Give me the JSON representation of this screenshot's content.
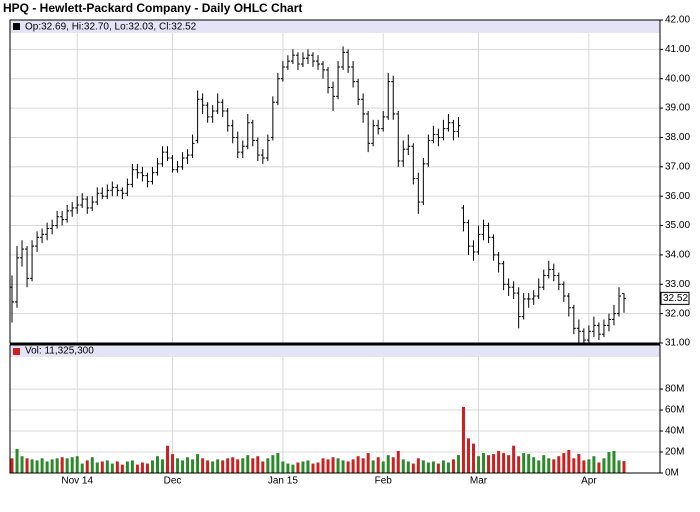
{
  "chart_data": [
    {
      "type": "ohlc",
      "title": "HPQ - Hewlett-Packard Company - Daily OHLC Chart",
      "legend": "Op:32.69, Hi:32.70, Lo:32.03, Cl:32.52",
      "color": "#000000",
      "grid": true,
      "categories": [
        null,
        null,
        null,
        null,
        null,
        null,
        null,
        null,
        null,
        null,
        null,
        null,
        null,
        "Nov 14",
        null,
        null,
        null,
        null,
        null,
        null,
        null,
        null,
        null,
        null,
        null,
        null,
        null,
        null,
        null,
        null,
        null,
        null,
        "Dec",
        null,
        null,
        null,
        null,
        null,
        null,
        null,
        null,
        null,
        null,
        null,
        null,
        null,
        null,
        null,
        null,
        null,
        null,
        null,
        null,
        null,
        "Jan 15",
        null,
        null,
        null,
        null,
        null,
        null,
        null,
        null,
        null,
        null,
        null,
        null,
        null,
        null,
        null,
        null,
        null,
        null,
        null,
        "Feb",
        null,
        null,
        null,
        null,
        null,
        null,
        null,
        null,
        null,
        null,
        null,
        null,
        null,
        null,
        null,
        null,
        null,
        null,
        "Mar",
        null,
        null,
        null,
        null,
        null,
        null,
        null,
        null,
        null,
        null,
        null,
        null,
        null,
        null,
        null,
        null,
        null,
        null,
        null,
        null,
        null,
        "Apr",
        null,
        null,
        null,
        null,
        null,
        null,
        null
      ],
      "open": [
        32.9,
        32.4,
        33.9,
        34.2,
        33.2,
        34.3,
        34.6,
        34.7,
        34.9,
        35.0,
        35.3,
        35.2,
        35.5,
        35.6,
        35.7,
        35.9,
        35.6,
        35.8,
        36.1,
        36.0,
        36.2,
        36.3,
        36.2,
        36.1,
        36.4,
        36.9,
        36.8,
        36.7,
        36.5,
        36.8,
        37.1,
        37.5,
        37.3,
        36.9,
        37.0,
        37.3,
        37.4,
        37.9,
        39.3,
        39.1,
        38.7,
        38.9,
        39.2,
        38.9,
        38.4,
        38.0,
        37.5,
        37.7,
        38.5,
        37.9,
        37.4,
        37.3,
        38.0,
        39.2,
        40.0,
        40.4,
        40.6,
        40.8,
        40.5,
        40.7,
        40.8,
        40.6,
        40.5,
        40.3,
        39.7,
        39.4,
        40.4,
        40.9,
        40.4,
        39.9,
        39.3,
        38.8,
        37.8,
        38.4,
        38.3,
        38.7,
        39.9,
        38.8,
        37.2,
        37.6,
        37.7,
        36.6,
        35.8,
        37.1,
        37.9,
        38.1,
        38.0,
        38.3,
        38.5,
        38.2,
        35.6,
        35.1,
        34.3,
        34.1,
        34.7,
        35.0,
        34.6,
        34.0,
        33.7,
        33.0,
        32.9,
        32.7,
        31.9,
        32.5,
        32.5,
        32.6,
        32.9,
        33.3,
        33.5,
        33.3,
        33.0,
        32.6,
        32.2,
        31.5,
        31.4,
        31.1,
        31.4,
        31.6,
        31.3,
        31.6,
        31.8,
        32.0,
        32.69
      ],
      "high": [
        33.3,
        34.3,
        34.5,
        34.3,
        34.5,
        34.8,
        34.9,
        35.1,
        35.2,
        35.5,
        35.5,
        35.7,
        35.8,
        36.0,
        36.1,
        36.0,
        36.0,
        36.3,
        36.3,
        36.4,
        36.5,
        36.4,
        36.3,
        36.6,
        37.1,
        37.1,
        37.0,
        36.8,
        37.0,
        37.3,
        37.7,
        37.7,
        37.4,
        37.2,
        37.5,
        37.6,
        38.1,
        39.6,
        39.5,
        39.2,
        39.1,
        39.5,
        39.3,
        39.0,
        38.6,
        38.2,
        37.9,
        38.8,
        38.6,
        38.0,
        37.6,
        38.1,
        39.4,
        40.2,
        40.6,
        40.8,
        41.0,
        40.9,
        40.9,
        41.0,
        40.9,
        40.8,
        40.6,
        40.4,
        39.9,
        40.6,
        41.1,
        41.0,
        40.6,
        40.0,
        39.5,
        38.9,
        38.6,
        38.6,
        38.9,
        40.2,
        40.1,
        38.9,
        37.9,
        38.1,
        37.8,
        36.8,
        37.3,
        38.1,
        38.4,
        38.3,
        38.6,
        38.8,
        38.6,
        38.7,
        35.7,
        35.2,
        34.5,
        35.0,
        35.2,
        35.1,
        34.7,
        34.1,
        33.8,
        33.2,
        33.1,
        32.9,
        32.7,
        32.7,
        32.8,
        33.2,
        33.5,
        33.8,
        33.7,
        33.4,
        33.1,
        32.7,
        32.3,
        31.8,
        31.5,
        31.6,
        31.9,
        31.7,
        31.8,
        32.0,
        32.3,
        32.9,
        32.7
      ],
      "low": [
        31.7,
        32.2,
        33.6,
        32.9,
        33.1,
        34.1,
        34.4,
        34.5,
        34.7,
        34.9,
        35.0,
        35.1,
        35.3,
        35.4,
        35.6,
        35.4,
        35.5,
        35.7,
        35.9,
        35.9,
        36.0,
        36.0,
        35.9,
        36.0,
        36.3,
        36.6,
        36.5,
        36.3,
        36.4,
        36.7,
        37.0,
        37.2,
        36.8,
        36.8,
        36.9,
        37.1,
        37.3,
        37.8,
        38.8,
        38.5,
        38.5,
        38.8,
        38.7,
        38.2,
        37.8,
        37.3,
        37.3,
        37.6,
        37.7,
        37.2,
        37.1,
        37.2,
        37.9,
        39.1,
        39.9,
        40.3,
        40.5,
        40.3,
        40.4,
        40.5,
        40.4,
        40.3,
        40.0,
        39.5,
        38.9,
        39.3,
        40.3,
        40.2,
        39.7,
        39.1,
        38.5,
        37.5,
        37.7,
        38.1,
        38.2,
        38.6,
        38.6,
        37.0,
        37.0,
        37.4,
        36.4,
        35.4,
        35.7,
        37.0,
        37.8,
        37.7,
        37.9,
        38.2,
        37.9,
        38.0,
        34.8,
        34.0,
        33.8,
        34.0,
        34.5,
        34.4,
        33.8,
        33.4,
        32.8,
        32.6,
        32.5,
        31.5,
        31.8,
        32.2,
        32.3,
        32.5,
        32.8,
        33.2,
        33.1,
        32.8,
        32.4,
        31.9,
        31.3,
        31.0,
        31.0,
        31.0,
        31.2,
        31.1,
        31.2,
        31.4,
        31.6,
        31.9,
        32.03
      ],
      "close": [
        32.4,
        33.9,
        34.2,
        33.2,
        34.3,
        34.6,
        34.7,
        34.9,
        35.0,
        35.3,
        35.2,
        35.5,
        35.6,
        35.7,
        35.9,
        35.6,
        35.8,
        36.1,
        36.0,
        36.2,
        36.3,
        36.2,
        36.1,
        36.4,
        36.9,
        36.8,
        36.7,
        36.5,
        36.8,
        37.1,
        37.5,
        37.3,
        36.9,
        37.0,
        37.3,
        37.4,
        37.8,
        39.3,
        39.1,
        38.7,
        38.9,
        39.2,
        38.9,
        38.4,
        38.0,
        37.5,
        37.7,
        38.5,
        37.9,
        37.4,
        37.3,
        37.9,
        39.2,
        40.0,
        40.4,
        40.6,
        40.8,
        40.5,
        40.7,
        40.8,
        40.6,
        40.5,
        40.3,
        39.7,
        39.4,
        40.4,
        40.9,
        40.4,
        39.9,
        39.3,
        38.8,
        37.8,
        38.4,
        38.3,
        38.7,
        39.9,
        38.8,
        37.2,
        37.6,
        37.7,
        36.6,
        35.8,
        37.1,
        37.9,
        38.1,
        38.0,
        38.3,
        38.5,
        38.2,
        38.4,
        35.1,
        34.3,
        34.1,
        34.7,
        35.0,
        34.6,
        34.0,
        33.7,
        33.0,
        32.9,
        32.7,
        31.9,
        32.5,
        32.5,
        32.6,
        32.9,
        33.3,
        33.5,
        33.3,
        33.0,
        32.6,
        32.2,
        31.5,
        31.4,
        31.1,
        31.4,
        31.6,
        31.3,
        31.6,
        31.8,
        32.0,
        32.6,
        32.52
      ],
      "ylim": [
        31,
        42
      ],
      "yticks": [
        {
          "value": 31,
          "label": "31.00"
        },
        {
          "value": 32,
          "label": "32.00"
        },
        {
          "value": 33,
          "label": "33.00"
        },
        {
          "value": 34,
          "label": "34.00"
        },
        {
          "value": 35,
          "label": "35.00"
        },
        {
          "value": 36,
          "label": "36.00"
        },
        {
          "value": 37,
          "label": "37.00"
        },
        {
          "value": 38,
          "label": "38.00"
        },
        {
          "value": 39,
          "label": "39.00"
        },
        {
          "value": 40,
          "label": "40.00"
        },
        {
          "value": 41,
          "label": "41.00"
        },
        {
          "value": 42,
          "label": "42.00"
        }
      ]
    },
    {
      "type": "bar",
      "legend": "Vol: 11,325,300",
      "up_color": "#2a8a2a",
      "down_color": "#cc2020",
      "grid": true,
      "values": [
        14,
        23,
        16,
        14,
        13,
        12,
        14,
        11,
        13,
        14,
        15,
        14,
        15,
        16,
        9,
        12,
        15,
        10,
        11,
        12,
        9,
        11,
        8,
        11,
        12,
        8,
        10,
        9,
        12,
        16,
        13,
        26,
        18,
        14,
        12,
        15,
        13,
        18,
        14,
        12,
        11,
        13,
        12,
        14,
        15,
        13,
        14,
        17,
        14,
        16,
        11,
        14,
        17,
        19,
        11,
        9,
        8,
        10,
        11,
        12,
        9,
        10,
        14,
        13,
        15,
        14,
        12,
        11,
        13,
        16,
        14,
        19,
        12,
        15,
        11,
        17,
        15,
        21,
        13,
        11,
        9,
        14,
        12,
        10,
        11,
        9,
        12,
        10,
        13,
        17,
        63,
        33,
        28,
        16,
        19,
        17,
        18,
        21,
        19,
        17,
        26,
        16,
        19,
        18,
        15,
        12,
        17,
        14,
        13,
        16,
        19,
        22,
        14,
        18,
        12,
        13,
        16,
        10,
        14,
        20,
        21,
        12,
        11.3253
      ],
      "ylim": [
        0,
        122
      ],
      "yticks": [
        {
          "value": 0,
          "label": "0M"
        },
        {
          "value": 20,
          "label": "20M"
        },
        {
          "value": 40,
          "label": "40M"
        },
        {
          "value": 60,
          "label": "60M"
        },
        {
          "value": 80,
          "label": "80M"
        }
      ]
    }
  ]
}
